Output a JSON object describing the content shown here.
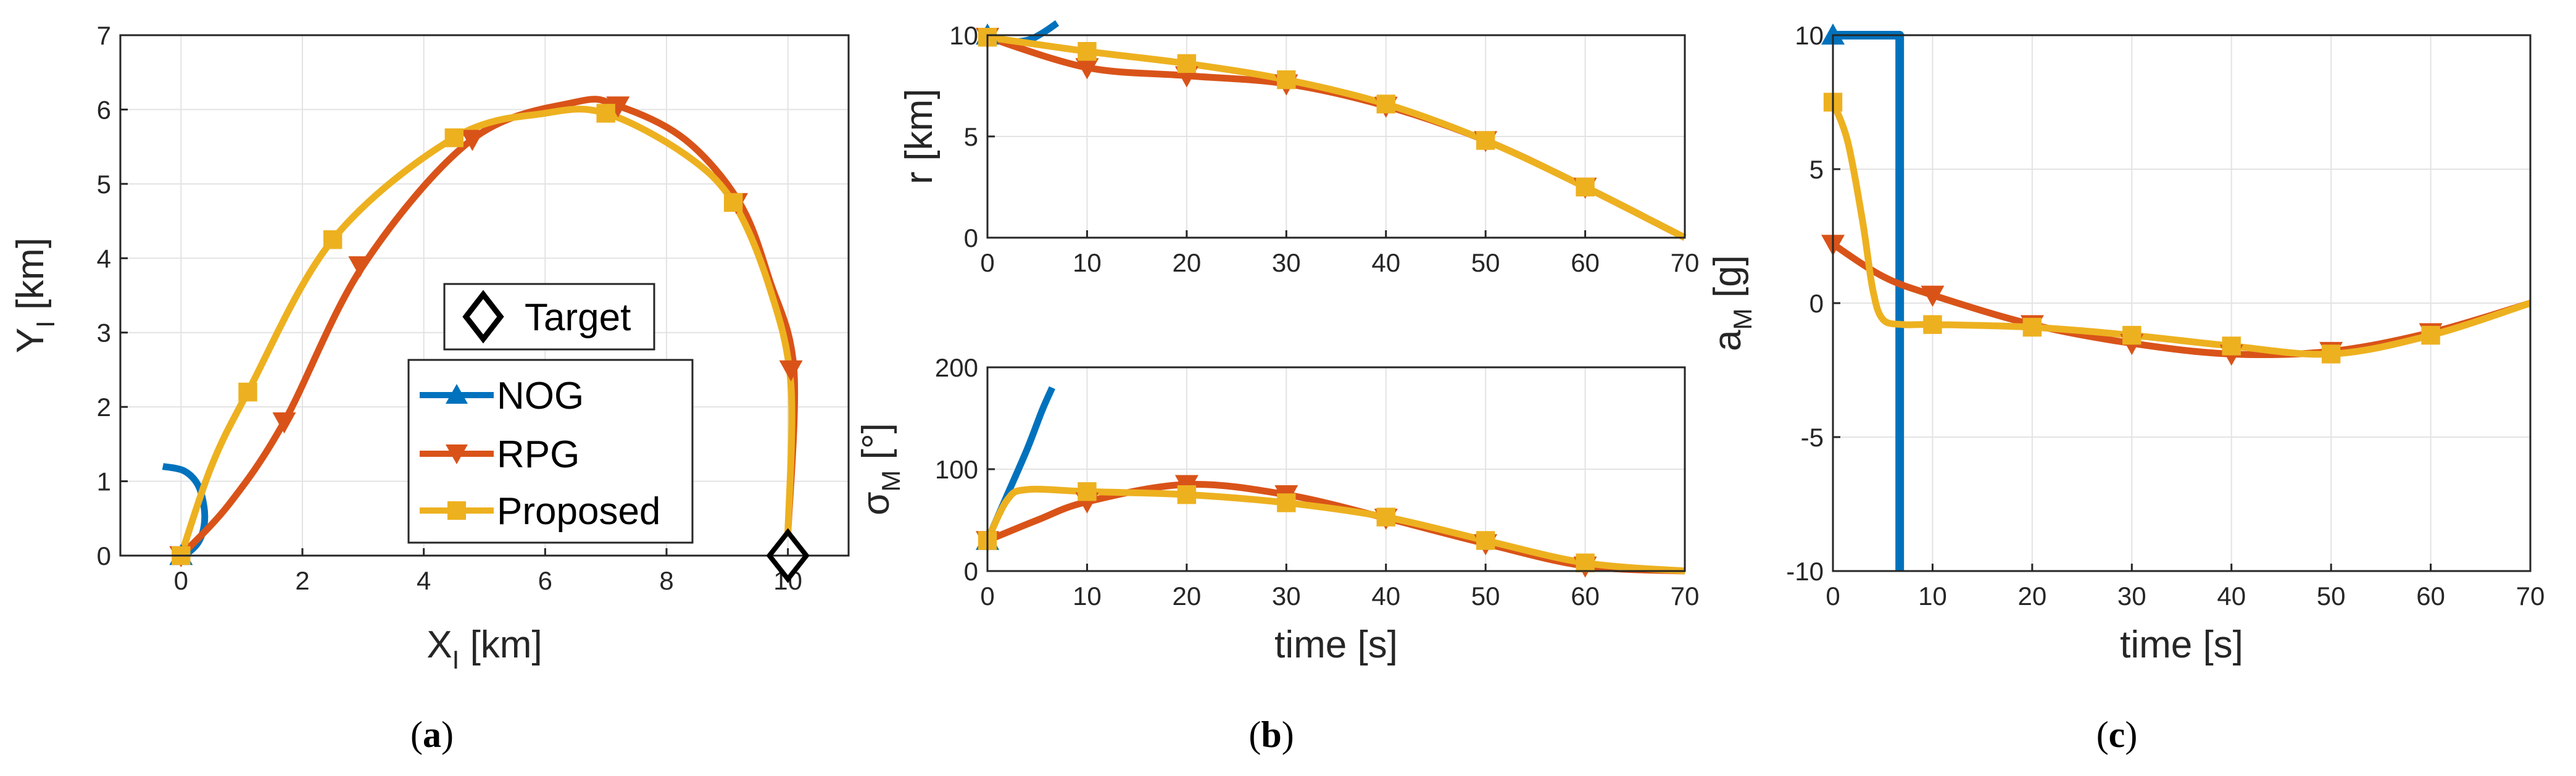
{
  "colors": {
    "NOG": "#0072bd",
    "RPG": "#d95319",
    "Proposed": "#edb120",
    "target": "#000000"
  },
  "chart_data": [
    {
      "id": "a",
      "type": "line",
      "caption": "(a)",
      "xlabel": "X",
      "xlabel_sub": "I",
      "xlabel_unit": " [km]",
      "ylabel": "Y",
      "ylabel_sub": "I",
      "ylabel_unit": " [km]",
      "xlim": [
        -1,
        11
      ],
      "ylim": [
        0,
        7
      ],
      "xticks": [
        0,
        2,
        4,
        6,
        8,
        10
      ],
      "yticks": [
        0,
        1,
        2,
        3,
        4,
        5,
        6,
        7
      ],
      "legend": [
        "NOG",
        "RPG",
        "Proposed"
      ],
      "target_label": "Target",
      "target_point": [
        10,
        0
      ],
      "series": [
        {
          "name": "NOG",
          "color": "#0072bd",
          "marker": "triangle-up",
          "x": [
            -0.3,
            0.05,
            0.28,
            0.38,
            0.38,
            0.3,
            0.15,
            0.0
          ],
          "y": [
            1.2,
            1.14,
            0.95,
            0.65,
            0.4,
            0.2,
            0.06,
            0.0
          ],
          "markers": [
            [
              0,
              0
            ]
          ]
        },
        {
          "name": "RPG",
          "color": "#d95319",
          "marker": "triangle-down",
          "x": [
            0,
            0.8,
            1.7,
            3.0,
            4.8,
            6.5,
            7.2,
            8.3,
            9.2,
            9.7,
            10.1,
            10.0
          ],
          "y": [
            0,
            0.7,
            1.8,
            3.9,
            5.6,
            6.1,
            6.05,
            5.6,
            4.75,
            3.7,
            2.5,
            0.3
          ],
          "markers": [
            [
              0,
              0
            ],
            [
              1.7,
              1.8
            ],
            [
              2.95,
              3.9
            ],
            [
              4.8,
              5.6
            ],
            [
              7.2,
              6.05
            ],
            [
              9.15,
              4.75
            ],
            [
              10.05,
              2.5
            ]
          ]
        },
        {
          "name": "Proposed",
          "color": "#edb120",
          "marker": "square",
          "x": [
            0,
            0.5,
            1.1,
            2.5,
            4.5,
            6.0,
            7.0,
            8.3,
            9.1,
            9.7,
            10.05,
            10.0
          ],
          "y": [
            0,
            1.2,
            2.2,
            4.25,
            5.62,
            5.95,
            5.95,
            5.4,
            4.75,
            3.6,
            2.3,
            0.3
          ],
          "markers": [
            [
              0,
              0
            ],
            [
              1.1,
              2.2
            ],
            [
              2.5,
              4.25
            ],
            [
              4.5,
              5.62
            ],
            [
              7.0,
              5.95
            ],
            [
              9.1,
              4.75
            ]
          ]
        }
      ]
    },
    {
      "id": "b1",
      "type": "line",
      "xlabel": "",
      "ylabel": "r [km]",
      "xlim": [
        0,
        70
      ],
      "ylim": [
        0,
        10
      ],
      "xticks": [
        0,
        10,
        20,
        30,
        40,
        50,
        60,
        70
      ],
      "yticks": [
        0,
        5,
        10
      ],
      "series": [
        {
          "name": "NOG",
          "color": "#0072bd",
          "marker": "triangle-up",
          "x": [
            0,
            2,
            4,
            5.5,
            7
          ],
          "y": [
            10,
            9.7,
            9.75,
            10.1,
            10.6
          ],
          "markers": [
            [
              0,
              10
            ]
          ]
        },
        {
          "name": "RPG",
          "color": "#d95319",
          "marker": "triangle-down",
          "x": [
            0,
            10,
            20,
            30,
            40,
            50,
            60,
            70
          ],
          "y": [
            9.9,
            8.4,
            8.0,
            7.6,
            6.5,
            4.8,
            2.5,
            0
          ],
          "markers": [
            [
              0,
              9.9
            ],
            [
              10,
              8.4
            ],
            [
              20,
              8.0
            ],
            [
              30,
              7.6
            ],
            [
              40,
              6.5
            ],
            [
              50,
              4.8
            ],
            [
              60,
              2.5
            ]
          ]
        },
        {
          "name": "Proposed",
          "color": "#edb120",
          "marker": "square",
          "x": [
            0,
            10,
            20,
            30,
            40,
            50,
            60,
            70
          ],
          "y": [
            9.9,
            9.2,
            8.6,
            7.8,
            6.6,
            4.8,
            2.5,
            0
          ],
          "markers": [
            [
              0,
              9.9
            ],
            [
              10,
              9.2
            ],
            [
              20,
              8.6
            ],
            [
              30,
              7.8
            ],
            [
              40,
              6.6
            ],
            [
              50,
              4.8
            ],
            [
              60,
              2.5
            ]
          ]
        }
      ]
    },
    {
      "id": "b2",
      "type": "line",
      "caption": "(b)",
      "xlabel": "time [s]",
      "ylabel": "σ",
      "ylabel_sub": "M",
      "ylabel_unit": " [°]",
      "xlim": [
        0,
        70
      ],
      "ylim": [
        0,
        200
      ],
      "xticks": [
        0,
        10,
        20,
        30,
        40,
        50,
        60,
        70
      ],
      "yticks": [
        0,
        100,
        200
      ],
      "series": [
        {
          "name": "NOG",
          "color": "#0072bd",
          "marker": "triangle-up",
          "x": [
            0,
            2,
            4,
            5.5,
            6.5
          ],
          "y": [
            30,
            75,
            120,
            158,
            180
          ],
          "markers": [
            [
              0,
              30
            ]
          ]
        },
        {
          "name": "RPG",
          "color": "#d95319",
          "marker": "triangle-down",
          "x": [
            0,
            5,
            10,
            20,
            30,
            40,
            50,
            60,
            70
          ],
          "y": [
            30,
            50,
            68,
            85,
            75,
            52,
            27,
            5,
            0
          ],
          "markers": [
            [
              0,
              30
            ],
            [
              10,
              68
            ],
            [
              20,
              85
            ],
            [
              30,
              75
            ],
            [
              40,
              52
            ],
            [
              50,
              27
            ],
            [
              60,
              5
            ]
          ]
        },
        {
          "name": "Proposed",
          "color": "#edb120",
          "marker": "square",
          "x": [
            0,
            2,
            4,
            10,
            20,
            30,
            40,
            50,
            60,
            70
          ],
          "y": [
            30,
            70,
            80,
            78,
            75,
            67,
            53,
            30,
            8,
            0
          ],
          "markers": [
            [
              0,
              30
            ],
            [
              10,
              78
            ],
            [
              20,
              75
            ],
            [
              30,
              67
            ],
            [
              40,
              53
            ],
            [
              50,
              30
            ],
            [
              60,
              8
            ]
          ]
        }
      ]
    },
    {
      "id": "c",
      "type": "line",
      "caption": "(c)",
      "xlabel": "time [s]",
      "ylabel": "a",
      "ylabel_sub": "M",
      "ylabel_unit": " [g]",
      "xlim": [
        0,
        70
      ],
      "ylim": [
        -10,
        10
      ],
      "xticks": [
        0,
        10,
        20,
        30,
        40,
        50,
        60,
        70
      ],
      "yticks": [
        -10,
        -5,
        0,
        5,
        10
      ],
      "series": [
        {
          "name": "NOG",
          "color": "#0072bd",
          "marker": "triangle-up",
          "x": [
            0,
            6.7,
            6.7
          ],
          "y": [
            10,
            10,
            -10
          ],
          "markers": [
            [
              0,
              10
            ]
          ]
        },
        {
          "name": "RPG",
          "color": "#d95319",
          "marker": "triangle-down",
          "x": [
            0,
            5,
            10,
            20,
            30,
            40,
            50,
            60,
            70
          ],
          "y": [
            2.2,
            1.0,
            0.3,
            -0.8,
            -1.5,
            -1.9,
            -1.8,
            -1.1,
            0
          ],
          "markers": [
            [
              0,
              2.2
            ],
            [
              10,
              0.3
            ],
            [
              20,
              -0.8
            ],
            [
              30,
              -1.5
            ],
            [
              40,
              -1.9
            ],
            [
              50,
              -1.8
            ],
            [
              60,
              -1.1
            ]
          ]
        },
        {
          "name": "Proposed",
          "color": "#edb120",
          "marker": "square",
          "x": [
            0,
            1.5,
            3,
            4,
            5,
            7,
            10,
            20,
            30,
            40,
            50,
            60,
            70
          ],
          "y": [
            7.5,
            6.0,
            3.0,
            0.5,
            -0.6,
            -0.8,
            -0.8,
            -0.9,
            -1.2,
            -1.6,
            -1.9,
            -1.2,
            0
          ],
          "markers": [
            [
              0,
              7.5
            ],
            [
              10,
              -0.8
            ],
            [
              20,
              -0.9
            ],
            [
              30,
              -1.2
            ],
            [
              40,
              -1.6
            ],
            [
              50,
              -1.9
            ],
            [
              60,
              -1.2
            ]
          ]
        }
      ]
    }
  ]
}
